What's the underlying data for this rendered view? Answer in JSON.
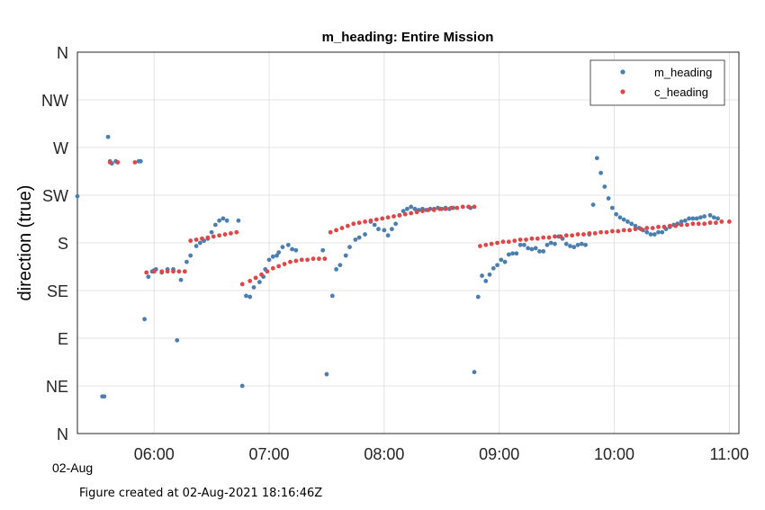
{
  "chart_data": {
    "type": "scatter",
    "title": "m_heading: Entire Mission",
    "ylabel": "direction (true)",
    "xlabel": "",
    "xlim": [
      "05:20",
      "11:05"
    ],
    "ylim": [
      0,
      360
    ],
    "x_ticks": [
      "06:00",
      "07:00",
      "08:00",
      "09:00",
      "10:00",
      "11:00"
    ],
    "x_tick_values": [
      "06:00",
      "07:00",
      "08:00",
      "09:00",
      "10:00",
      "11:00"
    ],
    "x_date_label": "02-Aug",
    "y_ticks": [
      {
        "label": "N",
        "value": 0
      },
      {
        "label": "NE",
        "value": 45
      },
      {
        "label": "E",
        "value": 90
      },
      {
        "label": "SE",
        "value": 135
      },
      {
        "label": "S",
        "value": 180
      },
      {
        "label": "SW",
        "value": 225
      },
      {
        "label": "W",
        "value": 270
      },
      {
        "label": "NW",
        "value": 315
      },
      {
        "label": "N",
        "value": 360
      }
    ],
    "grid": true,
    "legend_position": "top-right",
    "series": [
      {
        "name": "m_heading",
        "color": "#4a7fb0",
        "points": [
          [
            "05:20",
            224
          ],
          [
            "05:33",
            35
          ],
          [
            "05:34",
            35
          ],
          [
            "05:36",
            280
          ],
          [
            "05:37",
            257
          ],
          [
            "05:38",
            255
          ],
          [
            "05:40",
            257
          ],
          [
            "05:41",
            256
          ],
          [
            "05:52",
            257
          ],
          [
            "05:53",
            257
          ],
          [
            "05:55",
            108
          ],
          [
            "05:57",
            148
          ],
          [
            "05:59",
            153
          ],
          [
            "06:00",
            154
          ],
          [
            "06:01",
            155
          ],
          [
            "06:04",
            152
          ],
          [
            "06:07",
            155
          ],
          [
            "06:10",
            155
          ],
          [
            "06:12",
            88
          ],
          [
            "06:14",
            145
          ],
          [
            "06:17",
            162
          ],
          [
            "06:19",
            168
          ],
          [
            "06:22",
            177
          ],
          [
            "06:24",
            180
          ],
          [
            "06:26",
            182
          ],
          [
            "06:28",
            184
          ],
          [
            "06:30",
            190
          ],
          [
            "06:32",
            197
          ],
          [
            "06:34",
            201
          ],
          [
            "06:36",
            203
          ],
          [
            "06:38",
            201
          ],
          [
            "06:44",
            201
          ],
          [
            "06:46",
            45
          ],
          [
            "06:48",
            130
          ],
          [
            "06:50",
            129
          ],
          [
            "06:52",
            138
          ],
          [
            "06:55",
            143
          ],
          [
            "06:57",
            148
          ],
          [
            "06:58",
            155
          ],
          [
            "07:00",
            164
          ],
          [
            "07:02",
            167
          ],
          [
            "07:04",
            168
          ],
          [
            "07:05",
            171
          ],
          [
            "07:07",
            176
          ],
          [
            "07:10",
            178
          ],
          [
            "07:12",
            174
          ],
          [
            "07:14",
            173
          ],
          [
            "07:28",
            173
          ],
          [
            "07:30",
            56
          ],
          [
            "07:33",
            130
          ],
          [
            "07:35",
            155
          ],
          [
            "07:37",
            159
          ],
          [
            "07:40",
            168
          ],
          [
            "07:42",
            176
          ],
          [
            "07:45",
            183
          ],
          [
            "07:47",
            185
          ],
          [
            "07:50",
            188
          ],
          [
            "07:53",
            200
          ],
          [
            "07:55",
            197
          ],
          [
            "07:57",
            193
          ],
          [
            "08:00",
            192
          ],
          [
            "08:02",
            187
          ],
          [
            "08:04",
            193
          ],
          [
            "08:06",
            198
          ],
          [
            "08:08",
            206
          ],
          [
            "08:10",
            210
          ],
          [
            "08:12",
            212
          ],
          [
            "08:14",
            214
          ],
          [
            "08:16",
            212
          ],
          [
            "08:18",
            211
          ],
          [
            "08:20",
            212
          ],
          [
            "08:22",
            211
          ],
          [
            "08:24",
            212
          ],
          [
            "08:26",
            212
          ],
          [
            "08:28",
            213
          ],
          [
            "08:30",
            212
          ],
          [
            "08:32",
            213
          ],
          [
            "08:34",
            212
          ],
          [
            "08:36",
            213
          ],
          [
            "08:45",
            213
          ],
          [
            "08:47",
            58
          ],
          [
            "08:49",
            129
          ],
          [
            "08:51",
            149
          ],
          [
            "08:53",
            144
          ],
          [
            "08:55",
            150
          ],
          [
            "08:57",
            156
          ],
          [
            "08:59",
            159
          ],
          [
            "09:01",
            164
          ],
          [
            "09:03",
            162
          ],
          [
            "09:05",
            169
          ],
          [
            "09:07",
            170
          ],
          [
            "09:09",
            170
          ],
          [
            "09:11",
            178
          ],
          [
            "09:13",
            178
          ],
          [
            "09:15",
            175
          ],
          [
            "09:17",
            174
          ],
          [
            "09:19",
            175
          ],
          [
            "09:21",
            172
          ],
          [
            "09:23",
            172
          ],
          [
            "09:25",
            178
          ],
          [
            "09:27",
            180
          ],
          [
            "09:29",
            179
          ],
          [
            "09:31",
            186
          ],
          [
            "09:33",
            184
          ],
          [
            "09:35",
            179
          ],
          [
            "09:37",
            177
          ],
          [
            "09:39",
            176
          ],
          [
            "09:41",
            178
          ],
          [
            "09:43",
            179
          ],
          [
            "09:45",
            178
          ],
          [
            "09:47",
            188
          ],
          [
            "09:49",
            216
          ],
          [
            "09:51",
            260
          ],
          [
            "09:53",
            246
          ],
          [
            "09:55",
            233
          ],
          [
            "09:57",
            222
          ],
          [
            "09:59",
            213
          ],
          [
            "10:01",
            207
          ],
          [
            "10:03",
            204
          ],
          [
            "10:05",
            202
          ],
          [
            "10:07",
            200
          ],
          [
            "10:09",
            198
          ],
          [
            "10:11",
            196
          ],
          [
            "10:13",
            194
          ],
          [
            "10:15",
            192
          ],
          [
            "10:17",
            190
          ],
          [
            "10:19",
            188
          ],
          [
            "10:21",
            188
          ],
          [
            "10:23",
            190
          ],
          [
            "10:25",
            190
          ],
          [
            "10:27",
            193
          ],
          [
            "10:29",
            195
          ],
          [
            "10:31",
            197
          ],
          [
            "10:33",
            198
          ],
          [
            "10:35",
            200
          ],
          [
            "10:37",
            201
          ],
          [
            "10:39",
            203
          ],
          [
            "10:41",
            203
          ],
          [
            "10:43",
            203
          ],
          [
            "10:45",
            204
          ],
          [
            "10:47",
            205
          ],
          [
            "10:50",
            206
          ],
          [
            "10:52",
            204
          ],
          [
            "10:54",
            203
          ]
        ]
      },
      {
        "name": "c_heading",
        "color": "#e04646",
        "points": [
          [
            "05:37",
            256
          ],
          [
            "05:41",
            256
          ],
          [
            "05:50",
            256
          ],
          [
            "05:56",
            152
          ],
          [
            "06:00",
            153
          ],
          [
            "06:04",
            153
          ],
          [
            "06:07",
            153
          ],
          [
            "06:10",
            153
          ],
          [
            "06:13",
            153
          ],
          [
            "06:16",
            153
          ],
          [
            "06:19",
            182
          ],
          [
            "06:22",
            183
          ],
          [
            "06:25",
            184
          ],
          [
            "06:28",
            185
          ],
          [
            "06:31",
            186
          ],
          [
            "06:34",
            187
          ],
          [
            "06:37",
            188
          ],
          [
            "06:40",
            189
          ],
          [
            "06:43",
            190
          ],
          [
            "06:46",
            141
          ],
          [
            "06:50",
            144
          ],
          [
            "06:53",
            147
          ],
          [
            "06:56",
            150
          ],
          [
            "06:59",
            153
          ],
          [
            "07:02",
            156
          ],
          [
            "07:05",
            158
          ],
          [
            "07:08",
            160
          ],
          [
            "07:11",
            162
          ],
          [
            "07:14",
            163
          ],
          [
            "07:17",
            164
          ],
          [
            "07:20",
            164
          ],
          [
            "07:23",
            165
          ],
          [
            "07:26",
            165
          ],
          [
            "07:29",
            165
          ],
          [
            "07:32",
            190
          ],
          [
            "07:35",
            192
          ],
          [
            "07:38",
            194
          ],
          [
            "07:41",
            196
          ],
          [
            "07:44",
            198
          ],
          [
            "07:47",
            199
          ],
          [
            "07:50",
            200
          ],
          [
            "07:53",
            201
          ],
          [
            "07:56",
            202
          ],
          [
            "07:59",
            203
          ],
          [
            "08:02",
            204
          ],
          [
            "08:05",
            205
          ],
          [
            "08:08",
            206
          ],
          [
            "08:11",
            207
          ],
          [
            "08:14",
            208
          ],
          [
            "08:17",
            209
          ],
          [
            "08:20",
            210
          ],
          [
            "08:23",
            211
          ],
          [
            "08:26",
            211
          ],
          [
            "08:29",
            212
          ],
          [
            "08:32",
            212
          ],
          [
            "08:35",
            213
          ],
          [
            "08:38",
            213
          ],
          [
            "08:41",
            214
          ],
          [
            "08:44",
            214
          ],
          [
            "08:47",
            214
          ],
          [
            "08:50",
            177
          ],
          [
            "08:53",
            178
          ],
          [
            "08:56",
            179
          ],
          [
            "08:59",
            180
          ],
          [
            "09:02",
            181
          ],
          [
            "09:05",
            181
          ],
          [
            "09:08",
            182
          ],
          [
            "09:11",
            183
          ],
          [
            "09:14",
            183
          ],
          [
            "09:17",
            184
          ],
          [
            "09:20",
            184
          ],
          [
            "09:23",
            185
          ],
          [
            "09:26",
            185
          ],
          [
            "09:29",
            186
          ],
          [
            "09:32",
            186
          ],
          [
            "09:35",
            187
          ],
          [
            "09:38",
            187
          ],
          [
            "09:41",
            188
          ],
          [
            "09:44",
            188
          ],
          [
            "09:47",
            189
          ],
          [
            "09:50",
            189
          ],
          [
            "09:53",
            190
          ],
          [
            "09:56",
            190
          ],
          [
            "09:59",
            191
          ],
          [
            "10:02",
            191
          ],
          [
            "10:05",
            192
          ],
          [
            "10:08",
            192
          ],
          [
            "10:11",
            193
          ],
          [
            "10:14",
            193
          ],
          [
            "10:17",
            194
          ],
          [
            "10:20",
            194
          ],
          [
            "10:23",
            195
          ],
          [
            "10:26",
            195
          ],
          [
            "10:29",
            196
          ],
          [
            "10:32",
            196
          ],
          [
            "10:35",
            197
          ],
          [
            "10:38",
            197
          ],
          [
            "10:41",
            198
          ],
          [
            "10:44",
            198
          ],
          [
            "10:47",
            198
          ],
          [
            "10:50",
            199
          ],
          [
            "10:53",
            199
          ],
          [
            "10:56",
            200
          ],
          [
            "11:00",
            200
          ]
        ]
      }
    ]
  },
  "footer": "Figure created at 02-Aug-2021 18:16:46Z"
}
